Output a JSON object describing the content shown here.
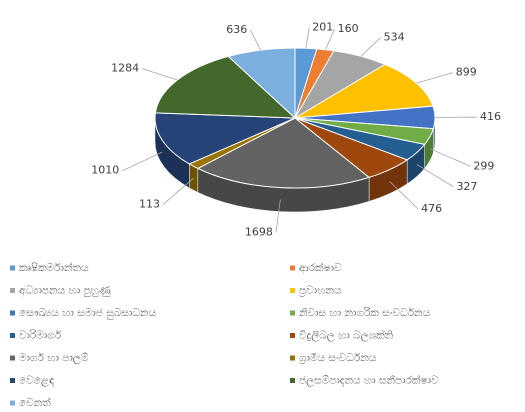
{
  "chart_data": {
    "type": "pie3d",
    "categories": [
      "කෘෂිකර්මාන්තය",
      "ආරක්ෂාව",
      "අධ්‍යාපනය හා පුහුණු",
      "ප්‍රවාහනය",
      "සෞඛ්‍යය හා සමාජ සුබසාධනය",
      "නිවාස හා නාගරික සංවර්ධනය",
      "වාරිමාර්ග",
      "විදුලිබල හා බලශක්ති",
      "මාර්ග හා පාලම්",
      "ග්‍රාමීය සංවර්ධනය",
      "වෙළෙඳ",
      "ජලසම්පාදනය හා සනීපාරක්ෂාව",
      "වෙනත්"
    ],
    "values": [
      201,
      160,
      534,
      899,
      416,
      299,
      327,
      476,
      1698,
      113,
      1010,
      1284,
      636
    ],
    "colors": [
      "#5b9bd5",
      "#ed7d31",
      "#a5a5a5",
      "#ffc000",
      "#4472c4",
      "#70ad47",
      "#255e91",
      "#9e480e",
      "#636363",
      "#997300",
      "#264478",
      "#43682b",
      "#7cafdd"
    ],
    "legend": "bottom"
  }
}
